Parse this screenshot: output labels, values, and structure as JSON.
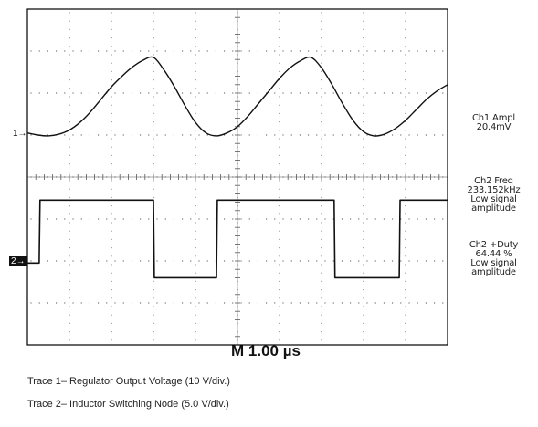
{
  "chart_data": {
    "type": "line",
    "grid": true,
    "divisions": {
      "x": 10,
      "y": 8
    },
    "series": [
      {
        "trace": "1",
        "shape": "sine",
        "x": [
          0,
          0.25,
          0.5,
          0.75,
          1,
          1.25,
          1.5,
          1.75,
          2,
          2.25,
          2.5,
          2.75,
          3,
          3.25,
          3.5,
          3.75,
          4,
          4.25,
          4.5,
          4.75,
          5,
          5.25,
          5.5,
          5.75,
          6,
          6.25,
          6.5,
          6.75,
          7,
          7.25,
          7.5,
          7.75,
          8,
          8.25,
          8.5,
          8.75,
          9,
          9.25,
          9.5,
          9.75,
          10
        ],
        "y": [
          1.05,
          1.0,
          0.98,
          1.02,
          1.12,
          1.3,
          1.55,
          1.85,
          2.15,
          2.4,
          2.62,
          2.78,
          2.85,
          2.55,
          2.15,
          1.7,
          1.3,
          1.05,
          0.98,
          1.05,
          1.2,
          1.45,
          1.75,
          2.05,
          2.35,
          2.6,
          2.77,
          2.85,
          2.6,
          2.2,
          1.75,
          1.35,
          1.08,
          0.98,
          1.02,
          1.15,
          1.35,
          1.6,
          1.85,
          2.05,
          2.2
        ]
      },
      {
        "trace": "2",
        "shape": "square",
        "x": [
          0,
          0.28,
          0.3,
          0.5,
          3.0,
          3.02,
          3.6,
          4.5,
          4.52,
          5.2,
          5.22,
          7.3,
          7.32,
          8.0,
          8.85,
          8.87,
          9.3,
          10
        ],
        "y": [
          -2.05,
          -2.05,
          -0.55,
          -0.55,
          -0.55,
          -2.4,
          -2.4,
          -2.4,
          -0.55,
          -0.55,
          -0.55,
          -0.55,
          -2.4,
          -2.4,
          -2.4,
          -0.55,
          -0.55,
          -0.55
        ]
      }
    ],
    "channel_markers": {
      "trace1": "1",
      "trace2": "2"
    },
    "timebase": "M 1.00 µs",
    "measurements": [
      {
        "lines": [
          "Ch1 Ampl",
          "20.4mV"
        ]
      },
      {
        "lines": [
          "Ch2 Freq",
          "233.152kHz",
          "Low signal",
          "amplitude"
        ]
      },
      {
        "lines": [
          "Ch2 +Duty",
          "64.44 %",
          "Low signal",
          "amplitude"
        ]
      }
    ],
    "colors": {
      "trace": "#111111",
      "grid": "#555555",
      "frame": "#000000",
      "background": "#ffffff"
    }
  },
  "captions": [
    "Trace 1– Regulator Output Voltage (10 V/div.)",
    "Trace 2– Inductor Switching Node (5.0 V/div.)"
  ]
}
